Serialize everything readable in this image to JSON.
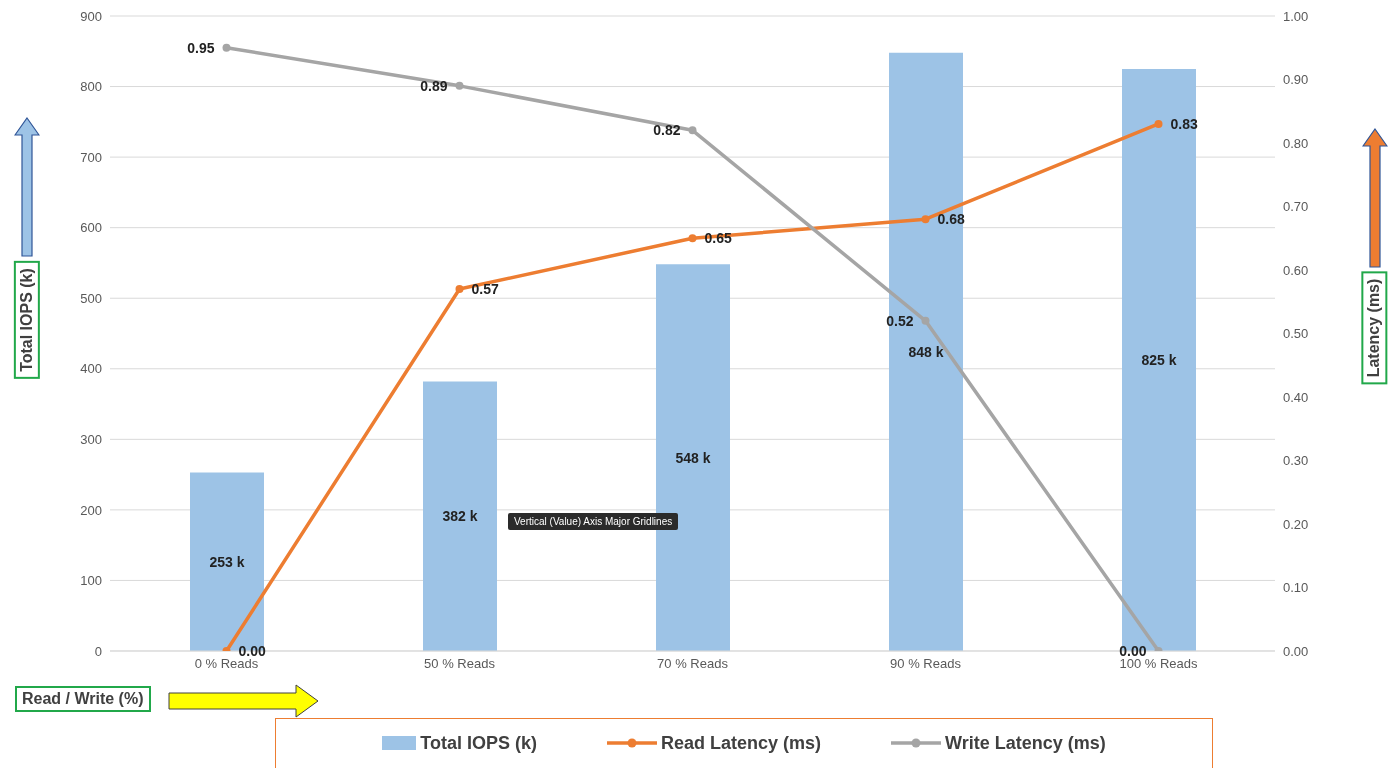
{
  "chart_data": {
    "type": "bar",
    "xlabel": "Read / Write (%)",
    "ylabel": "Total IOPS (k)",
    "y2label": "Latency (ms)",
    "categories": [
      "0 % Reads",
      "50 % Reads",
      "70 % Reads",
      "90 % Reads",
      "100 % Reads"
    ],
    "series": [
      {
        "name": "Total IOPS (k)",
        "color": "#9dc3e6",
        "values": [
          253,
          382,
          548,
          848,
          825
        ],
        "value_labels": [
          "253 k",
          "382 k",
          "548 k",
          "848 k",
          "825 k"
        ]
      },
      {
        "name": "Read Latency (ms)",
        "type": "line",
        "axis": "y2",
        "color": "#ed7d31",
        "values": [
          0,
          0.57,
          0.65,
          0.68,
          0.83
        ],
        "value_labels": [
          "0.00",
          "0.57",
          "0.65",
          "0.68",
          "0.83"
        ]
      },
      {
        "name": "Write Latency (ms)",
        "type": "line",
        "axis": "y2",
        "color": "#a5a5a5",
        "values": [
          0.95,
          0.89,
          0.82,
          0.52,
          0
        ],
        "value_labels": [
          "0.95",
          "0.89",
          "0.82",
          "0.52",
          "0.00"
        ]
      }
    ],
    "ylim": [
      0,
      900
    ],
    "yticks": [
      0,
      100,
      200,
      300,
      400,
      500,
      600,
      700,
      800,
      900
    ],
    "y2lim": [
      0,
      1
    ],
    "y2ticks": [
      {
        "value": 0,
        "label": "0.00"
      },
      {
        "value": 0.1,
        "label": "0.10"
      },
      {
        "value": 0.2,
        "label": "0.20"
      },
      {
        "value": 0.3,
        "label": "0.30"
      },
      {
        "value": 0.4,
        "label": "0.40"
      },
      {
        "value": 0.5,
        "label": "0.50"
      },
      {
        "value": 0.6,
        "label": "0.60"
      },
      {
        "value": 0.7,
        "label": "0.70"
      },
      {
        "value": 0.8,
        "label": "0.80"
      },
      {
        "value": 0.9,
        "label": "0.90"
      },
      {
        "value": 1,
        "label": "1.00"
      }
    ],
    "grid": "y",
    "legend": "bottom",
    "marker": "circle",
    "annotations": [
      "Vertical (Value) Axis Major Gridlines"
    ]
  }
}
